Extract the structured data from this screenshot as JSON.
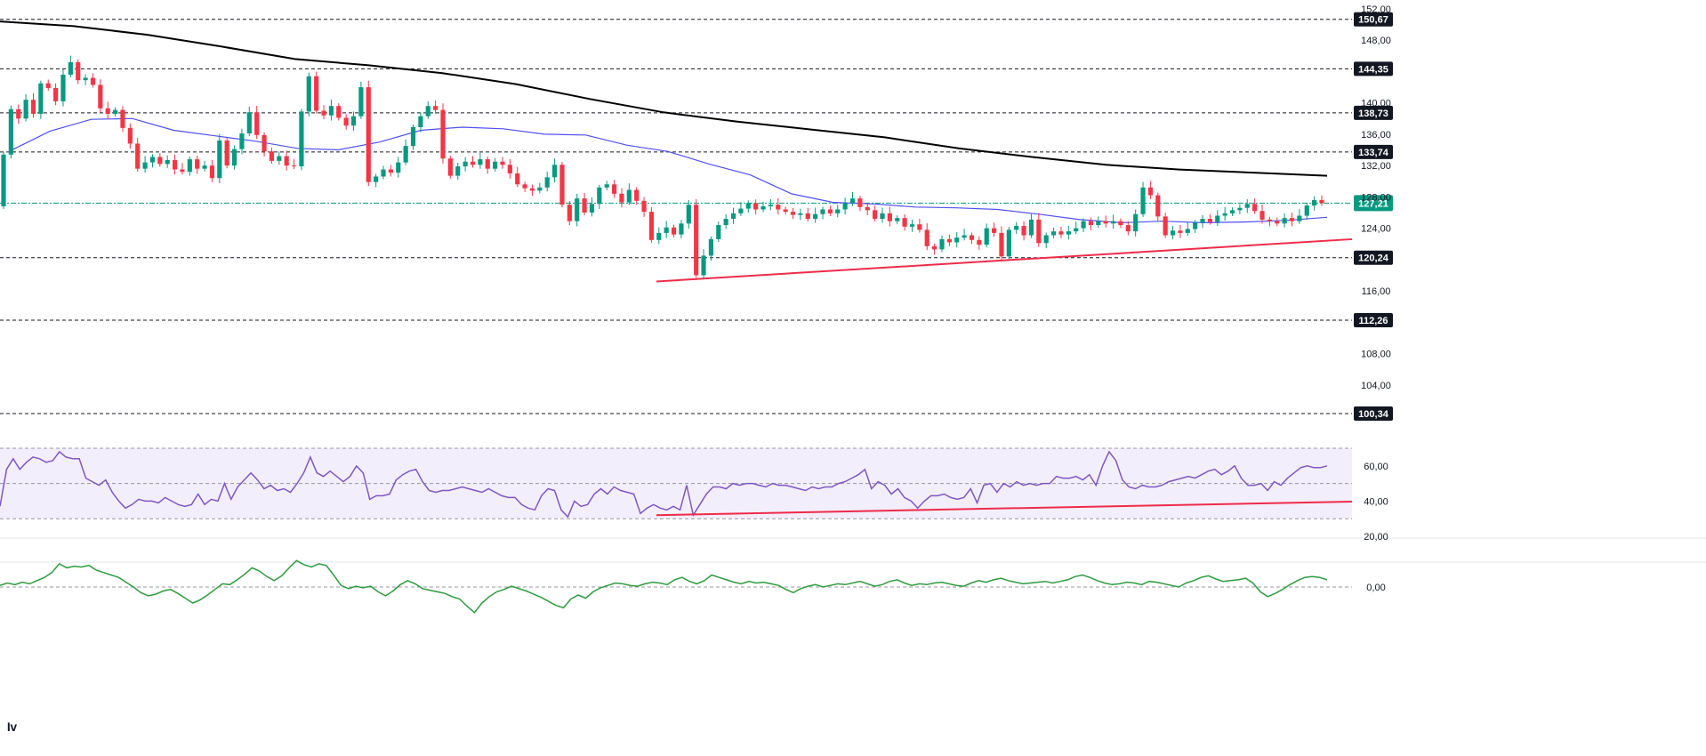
{
  "chart_data": [
    {
      "type": "candlestick",
      "title": "",
      "xlabel": "",
      "ylabel": "",
      "ylim": [
        97.5,
        152.0
      ],
      "y_ticks": [
        "152,00",
        "148,00",
        "140,00",
        "136,00",
        "132,00",
        "128,00",
        "124,00",
        "116,00",
        "108,00",
        "104,00"
      ],
      "levels": [
        {
          "label": "150,67",
          "value": 150.67,
          "style": "dashed"
        },
        {
          "label": "144,35",
          "value": 144.35,
          "style": "dashed"
        },
        {
          "label": "138,73",
          "value": 138.73,
          "style": "dashed"
        },
        {
          "label": "133,74",
          "value": 133.74,
          "style": "dashed"
        },
        {
          "label": "120,24",
          "value": 120.24,
          "style": "dashed"
        },
        {
          "label": "112,26",
          "value": 112.26,
          "style": "dashed"
        },
        {
          "label": "100,34",
          "value": 100.34,
          "style": "dashed"
        }
      ],
      "last_price": {
        "label": "127,21",
        "value": 127.21
      },
      "colors": {
        "up": "#089981",
        "down": "#f23645",
        "ma_long": "#000000",
        "ma_short": "#4f4ff0",
        "trendline": "#ee2b4a",
        "badge": "#131722",
        "last_badge": "#089981"
      },
      "ma_long": [
        150.4,
        149.8,
        148.7,
        147.2,
        145.6,
        144.8,
        143.8,
        142.4,
        140.5,
        138.8,
        137.6,
        136.6,
        135.6,
        134.2,
        133.1,
        132.1,
        131.5,
        131.1,
        130.7
      ],
      "ma_short": [
        133.8,
        136.4,
        137.9,
        138.0,
        136.5,
        135.8,
        135.1,
        134.2,
        134.0,
        135.0,
        136.5,
        136.9,
        136.7,
        136.0,
        135.9,
        134.6,
        133.8,
        132.2,
        130.8,
        128.4,
        127.3,
        127.1,
        126.7,
        126.6,
        126.4,
        125.8,
        125.1,
        124.7,
        124.9,
        124.7,
        124.8,
        125.0,
        125.4
      ],
      "trendline": {
        "from": [
          0.4855,
          117.2
        ],
        "to": [
          1.0,
          122.6
        ]
      },
      "candles": [
        [
          126.8,
          133.4
        ],
        [
          133.4,
          139.2
        ],
        [
          139.2,
          138.0
        ],
        [
          138.0,
          140.4
        ],
        [
          140.4,
          138.6
        ],
        [
          138.6,
          142.5
        ],
        [
          142.5,
          141.9
        ],
        [
          141.9,
          140.2
        ],
        [
          140.2,
          143.6
        ],
        [
          143.6,
          145.2
        ],
        [
          145.2,
          142.9
        ],
        [
          142.9,
          143.2
        ],
        [
          143.2,
          142.3
        ],
        [
          142.3,
          139.3
        ],
        [
          139.3,
          138.6
        ],
        [
          138.6,
          139.1
        ],
        [
          139.1,
          136.8
        ],
        [
          136.8,
          134.8
        ],
        [
          134.8,
          131.6
        ],
        [
          131.6,
          132.4
        ],
        [
          132.4,
          133.1
        ],
        [
          133.1,
          132.2
        ],
        [
          132.2,
          132.7
        ],
        [
          132.7,
          131.5
        ],
        [
          131.5,
          131.2
        ],
        [
          131.2,
          132.8
        ],
        [
          132.8,
          131.6
        ],
        [
          131.6,
          132.0
        ],
        [
          132.0,
          130.4
        ],
        [
          130.4,
          135.2
        ],
        [
          135.2,
          132.0
        ],
        [
          132.0,
          134.1
        ],
        [
          134.1,
          136.1
        ],
        [
          136.1,
          138.8
        ],
        [
          138.8,
          135.9
        ],
        [
          135.9,
          133.8
        ],
        [
          133.8,
          132.6
        ],
        [
          132.6,
          133.2
        ],
        [
          133.2,
          132.0
        ],
        [
          132.0,
          131.9
        ],
        [
          131.9,
          138.9
        ],
        [
          138.9,
          143.4
        ],
        [
          143.4,
          139.0
        ],
        [
          139.0,
          138.4
        ],
        [
          138.4,
          139.6
        ],
        [
          139.6,
          138.1
        ],
        [
          138.1,
          137.1
        ],
        [
          137.1,
          138.3
        ],
        [
          138.3,
          142.0
        ],
        [
          142.0,
          129.9
        ],
        [
          129.9,
          130.6
        ],
        [
          130.6,
          131.5
        ],
        [
          131.5,
          131.1
        ],
        [
          131.1,
          132.4
        ],
        [
          132.4,
          134.5
        ],
        [
          134.5,
          136.9
        ],
        [
          136.9,
          138.3
        ],
        [
          138.3,
          139.6
        ],
        [
          139.6,
          139.1
        ],
        [
          139.1,
          132.9
        ],
        [
          132.9,
          130.7
        ],
        [
          130.7,
          131.9
        ],
        [
          131.9,
          132.5
        ],
        [
          132.5,
          132.1
        ],
        [
          132.1,
          132.8
        ],
        [
          132.8,
          131.6
        ],
        [
          131.6,
          132.5
        ],
        [
          132.5,
          132.1
        ],
        [
          132.1,
          131.0
        ],
        [
          131.0,
          129.6
        ],
        [
          129.6,
          129.1
        ],
        [
          129.1,
          128.8
        ],
        [
          128.8,
          129.2
        ],
        [
          129.2,
          130.5
        ],
        [
          130.5,
          132.1
        ],
        [
          132.1,
          127.0
        ],
        [
          127.0,
          124.9
        ],
        [
          124.9,
          127.8
        ],
        [
          127.8,
          126.0
        ],
        [
          126.0,
          127.1
        ],
        [
          127.1,
          129.2
        ],
        [
          129.2,
          129.6
        ],
        [
          129.6,
          128.4
        ],
        [
          128.4,
          127.3
        ],
        [
          127.3,
          128.9
        ],
        [
          128.9,
          127.5
        ],
        [
          127.5,
          126.1
        ],
        [
          126.1,
          122.5
        ],
        [
          122.5,
          123.4
        ],
        [
          123.4,
          124.1
        ],
        [
          124.1,
          123.2
        ],
        [
          123.2,
          124.6
        ],
        [
          124.6,
          127.0
        ],
        [
          127.0,
          118.0
        ],
        [
          118.0,
          120.5
        ],
        [
          120.5,
          122.6
        ],
        [
          122.6,
          124.4
        ],
        [
          124.4,
          125.2
        ],
        [
          125.2,
          125.9
        ],
        [
          125.9,
          126.5
        ],
        [
          126.5,
          127.2
        ],
        [
          127.2,
          126.4
        ],
        [
          126.4,
          126.8
        ],
        [
          126.8,
          127.0
        ],
        [
          127.0,
          126.4
        ],
        [
          126.4,
          126.1
        ],
        [
          126.1,
          125.7
        ],
        [
          125.7,
          125.9
        ],
        [
          125.9,
          125.2
        ],
        [
          125.2,
          125.8
        ],
        [
          125.8,
          126.4
        ],
        [
          126.4,
          125.9
        ],
        [
          125.9,
          126.4
        ],
        [
          126.4,
          127.2
        ],
        [
          127.2,
          127.8
        ],
        [
          127.8,
          126.7
        ],
        [
          126.7,
          126.3
        ],
        [
          126.3,
          125.2
        ],
        [
          125.2,
          125.9
        ],
        [
          125.9,
          124.9
        ],
        [
          124.9,
          125.3
        ],
        [
          125.3,
          124.2
        ],
        [
          124.2,
          124.5
        ],
        [
          124.5,
          123.8
        ],
        [
          123.8,
          121.7
        ],
        [
          121.7,
          121.3
        ],
        [
          121.3,
          122.6
        ],
        [
          122.6,
          122.2
        ],
        [
          122.2,
          122.8
        ],
        [
          122.8,
          123.1
        ],
        [
          123.1,
          122.5
        ],
        [
          122.5,
          121.9
        ],
        [
          121.9,
          124.0
        ],
        [
          124.0,
          123.4
        ],
        [
          123.4,
          120.4
        ],
        [
          120.4,
          123.8
        ],
        [
          123.8,
          124.3
        ],
        [
          124.3,
          123.1
        ],
        [
          123.1,
          125.1
        ],
        [
          125.1,
          122.1
        ],
        [
          122.1,
          123.1
        ],
        [
          123.1,
          123.6
        ],
        [
          123.6,
          123.2
        ],
        [
          123.2,
          123.6
        ],
        [
          123.6,
          124.0
        ],
        [
          124.0,
          124.9
        ],
        [
          124.9,
          124.4
        ],
        [
          124.4,
          124.9
        ],
        [
          124.9,
          124.6
        ],
        [
          124.6,
          124.9
        ],
        [
          124.9,
          124.4
        ],
        [
          124.4,
          123.6
        ],
        [
          123.6,
          125.8
        ],
        [
          125.8,
          129.2
        ],
        [
          129.2,
          128.2
        ],
        [
          128.2,
          125.5
        ],
        [
          125.5,
          123.1
        ],
        [
          123.1,
          123.7
        ],
        [
          123.7,
          123.4
        ],
        [
          123.4,
          123.9
        ],
        [
          123.9,
          124.7
        ],
        [
          124.7,
          125.2
        ],
        [
          125.2,
          124.8
        ],
        [
          124.8,
          125.6
        ],
        [
          125.6,
          125.9
        ],
        [
          125.9,
          126.3
        ],
        [
          126.3,
          126.6
        ],
        [
          126.6,
          127.1
        ],
        [
          127.1,
          126.2
        ],
        [
          126.2,
          125.1
        ],
        [
          125.1,
          124.9
        ],
        [
          124.9,
          124.6
        ],
        [
          124.6,
          125.3
        ],
        [
          125.3,
          124.9
        ],
        [
          124.9,
          125.6
        ],
        [
          125.6,
          126.9
        ],
        [
          126.9,
          127.6
        ],
        [
          127.6,
          127.21
        ]
      ]
    },
    {
      "type": "line",
      "title": "",
      "ylim": [
        20,
        72
      ],
      "y_ticks": [
        "60,00",
        "40,00",
        "20,00"
      ],
      "bands": [
        70,
        50,
        30
      ],
      "colors": {
        "line": "#7e57c2",
        "band": "#f3eefb",
        "trendline": "#ee2b4a"
      },
      "trendline": {
        "from": [
          0.4855,
          32.0
        ],
        "to": [
          1.0,
          39.7
        ]
      },
      "values": [
        37,
        58,
        64,
        58,
        62,
        65,
        64,
        62,
        63,
        68,
        65,
        64,
        64,
        53,
        51,
        49,
        52,
        45,
        40,
        36,
        38,
        41,
        40,
        40,
        39,
        42,
        40,
        38,
        37,
        38,
        44,
        38,
        41,
        40,
        50,
        41,
        48,
        52,
        56,
        52,
        47,
        49,
        46,
        47,
        45,
        50,
        56,
        65,
        56,
        54,
        57,
        54,
        51,
        54,
        60,
        56,
        41,
        43,
        43,
        44,
        52,
        55,
        57,
        58,
        51,
        46,
        45,
        46,
        46,
        47,
        48,
        47,
        46,
        45,
        47,
        45,
        43,
        42,
        42,
        38,
        36,
        35,
        43,
        47,
        46,
        35,
        31,
        40,
        37,
        38,
        44,
        47,
        44,
        48,
        46,
        45,
        44,
        33,
        36,
        38,
        36,
        35,
        37,
        35,
        49,
        32,
        38,
        44,
        48,
        48,
        47,
        50,
        49,
        50,
        50,
        49,
        48,
        50,
        49,
        49,
        48,
        47,
        46,
        48,
        47,
        48,
        48,
        50,
        51,
        53,
        55,
        58,
        47,
        51,
        49,
        44,
        47,
        42,
        40,
        36,
        40,
        43,
        43,
        44,
        42,
        41,
        42,
        47,
        39,
        49,
        50,
        45,
        50,
        48,
        51,
        49,
        50,
        49,
        50,
        50,
        54,
        53,
        53,
        54,
        52,
        55,
        49,
        60,
        68,
        63,
        52,
        48,
        47,
        49,
        48,
        48,
        49,
        51,
        52,
        53,
        54,
        53,
        55,
        57,
        58,
        55,
        57,
        60,
        53,
        49,
        49,
        50,
        46,
        51,
        49,
        53,
        56,
        59,
        60,
        59,
        59,
        60
      ]
    },
    {
      "type": "line",
      "title": "",
      "y_ticks": [
        "0,00"
      ],
      "zero_line": 0,
      "colors": {
        "line": "#2e9b3f"
      },
      "values": [
        0.2,
        0.5,
        0.3,
        0.6,
        0.4,
        0.8,
        1.2,
        1.8,
        2.9,
        2.4,
        2.6,
        2.5,
        2.7,
        2.1,
        1.8,
        1.5,
        1.2,
        0.6,
        0.0,
        -0.7,
        -1.1,
        -0.9,
        -0.5,
        -0.3,
        -0.8,
        -1.4,
        -2.0,
        -1.6,
        -1.0,
        -0.3,
        0.4,
        0.3,
        0.9,
        1.6,
        2.4,
        2.0,
        1.3,
        0.8,
        1.4,
        2.4,
        3.3,
        2.8,
        2.5,
        2.9,
        2.7,
        1.5,
        0.2,
        -0.2,
        0.1,
        -0.1,
        0.1,
        -0.6,
        -1.1,
        -0.5,
        0.3,
        0.8,
        0.4,
        -0.2,
        -0.4,
        -0.6,
        -0.8,
        -1.2,
        -1.5,
        -2.4,
        -3.2,
        -2.0,
        -1.2,
        -0.6,
        -0.3,
        0.1,
        -0.2,
        -0.5,
        -0.9,
        -1.3,
        -1.8,
        -2.3,
        -2.6,
        -1.5,
        -1.0,
        -1.4,
        -0.6,
        -0.1,
        0.2,
        0.5,
        0.4,
        0.2,
        0.1,
        0.4,
        0.6,
        0.5,
        0.3,
        0.9,
        1.2,
        0.7,
        0.4,
        0.8,
        1.5,
        1.2,
        0.9,
        0.6,
        0.4,
        0.7,
        0.5,
        0.6,
        0.4,
        0.2,
        -0.3,
        -0.7,
        -0.2,
        0.1,
        0.3,
        0.0,
        0.2,
        0.4,
        0.3,
        0.5,
        0.7,
        0.4,
        0.1,
        0.3,
        0.7,
        0.9,
        0.5,
        0.2,
        0.4,
        0.3,
        0.5,
        0.6,
        0.4,
        0.2,
        0.1,
        0.5,
        0.8,
        0.6,
        0.9,
        1.1,
        0.8,
        0.6,
        0.4,
        0.5,
        0.6,
        0.7,
        0.5,
        0.7,
        0.9,
        1.3,
        1.5,
        1.2,
        0.8,
        0.5,
        0.3,
        0.4,
        0.6,
        0.5,
        0.3,
        0.7,
        0.6,
        0.4,
        0.2,
        0.0,
        0.5,
        0.8,
        1.2,
        1.4,
        1.0,
        0.7,
        0.8,
        0.9,
        1.1,
        0.5,
        -0.6,
        -1.2,
        -0.8,
        -0.3,
        0.3,
        0.8,
        1.2,
        1.3,
        1.2,
        0.9
      ]
    }
  ]
}
